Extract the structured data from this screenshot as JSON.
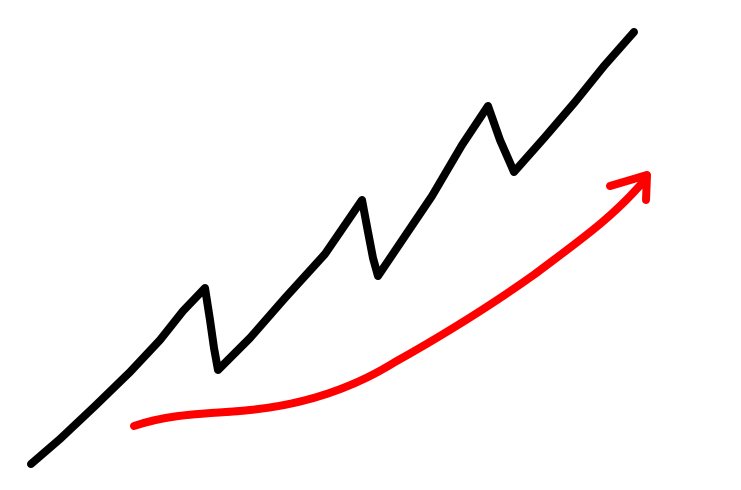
{
  "colors": {
    "background": "#ffffff",
    "zigzag": "#000000",
    "trend_arrow": "#ff0000"
  },
  "icons": {
    "zigzag": "zigzag-line-icon",
    "trend": "upward-trend-arrow-icon"
  }
}
